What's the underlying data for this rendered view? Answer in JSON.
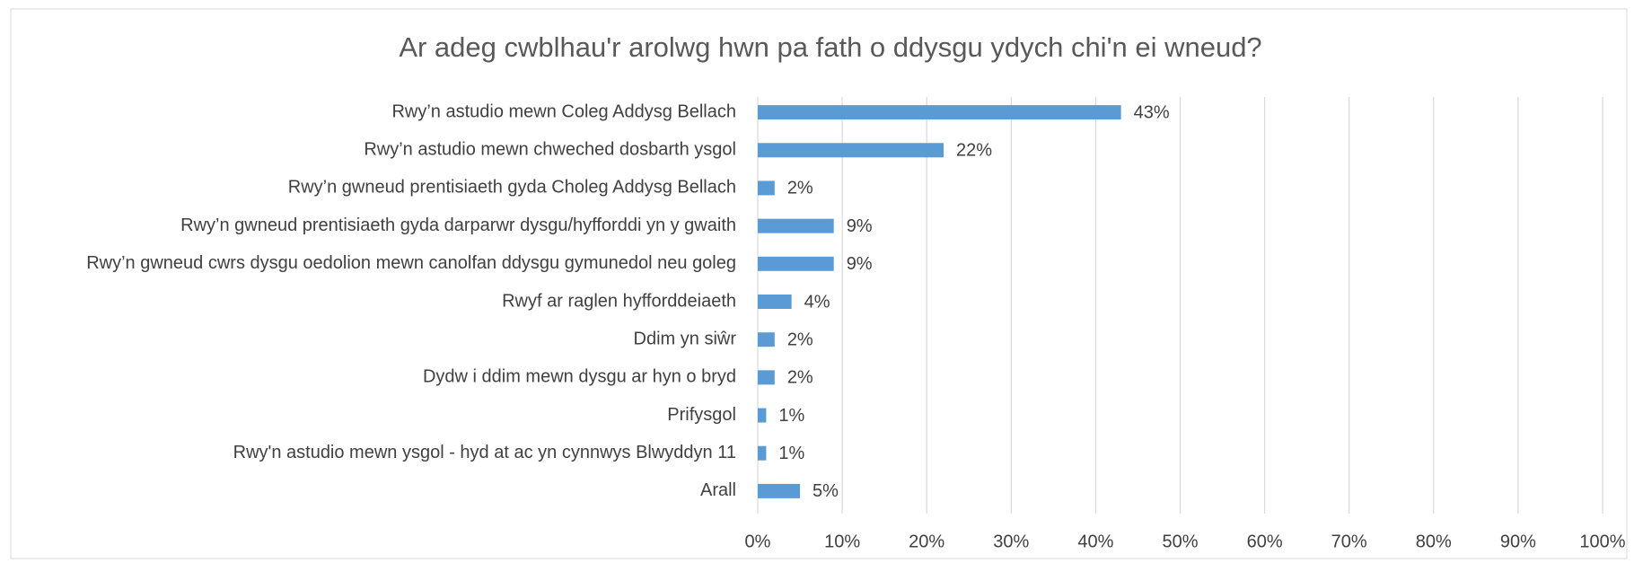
{
  "chart_data": {
    "type": "bar",
    "orientation": "horizontal",
    "title": "Ar adeg cwblhau'r arolwg hwn pa fath o ddysgu ydych chi'n ei wneud?",
    "categories": [
      "Rwy’n astudio mewn Coleg Addysg Bellach",
      "Rwy’n astudio mewn chweched dosbarth ysgol",
      "Rwy’n gwneud prentisiaeth gyda Choleg Addysg Bellach",
      "Rwy’n gwneud prentisiaeth gyda darparwr dysgu/hyfforddi yn y gwaith",
      "Rwy’n gwneud cwrs dysgu oedolion mewn canolfan ddysgu gymunedol neu goleg",
      "Rwyf ar raglen hyfforddeiaeth",
      "Ddim yn siŵr",
      "Dydw i ddim mewn dysgu ar hyn o bryd",
      "Prifysgol",
      "Rwy'n astudio mewn ysgol - hyd at ac yn cynnwys Blwyddyn 11",
      "Arall"
    ],
    "values": [
      43,
      22,
      2,
      9,
      9,
      4,
      2,
      2,
      1,
      1,
      5
    ],
    "value_labels": [
      "43%",
      "22%",
      "2%",
      "9%",
      "9%",
      "4%",
      "2%",
      "2%",
      "1%",
      "1%",
      "5%"
    ],
    "color": "#5b9bd5",
    "xlim": [
      0,
      100
    ],
    "xticks": [
      {
        "value": 0,
        "label": "0%"
      },
      {
        "value": 10,
        "label": "10%"
      },
      {
        "value": 20,
        "label": "20%"
      },
      {
        "value": 30,
        "label": "30%"
      },
      {
        "value": 40,
        "label": "40%"
      },
      {
        "value": 50,
        "label": "50%"
      },
      {
        "value": 60,
        "label": "60%"
      },
      {
        "value": 70,
        "label": "70%"
      },
      {
        "value": 80,
        "label": "80%"
      },
      {
        "value": 90,
        "label": "90%"
      },
      {
        "value": 100,
        "label": "100%"
      }
    ],
    "grid": true
  }
}
